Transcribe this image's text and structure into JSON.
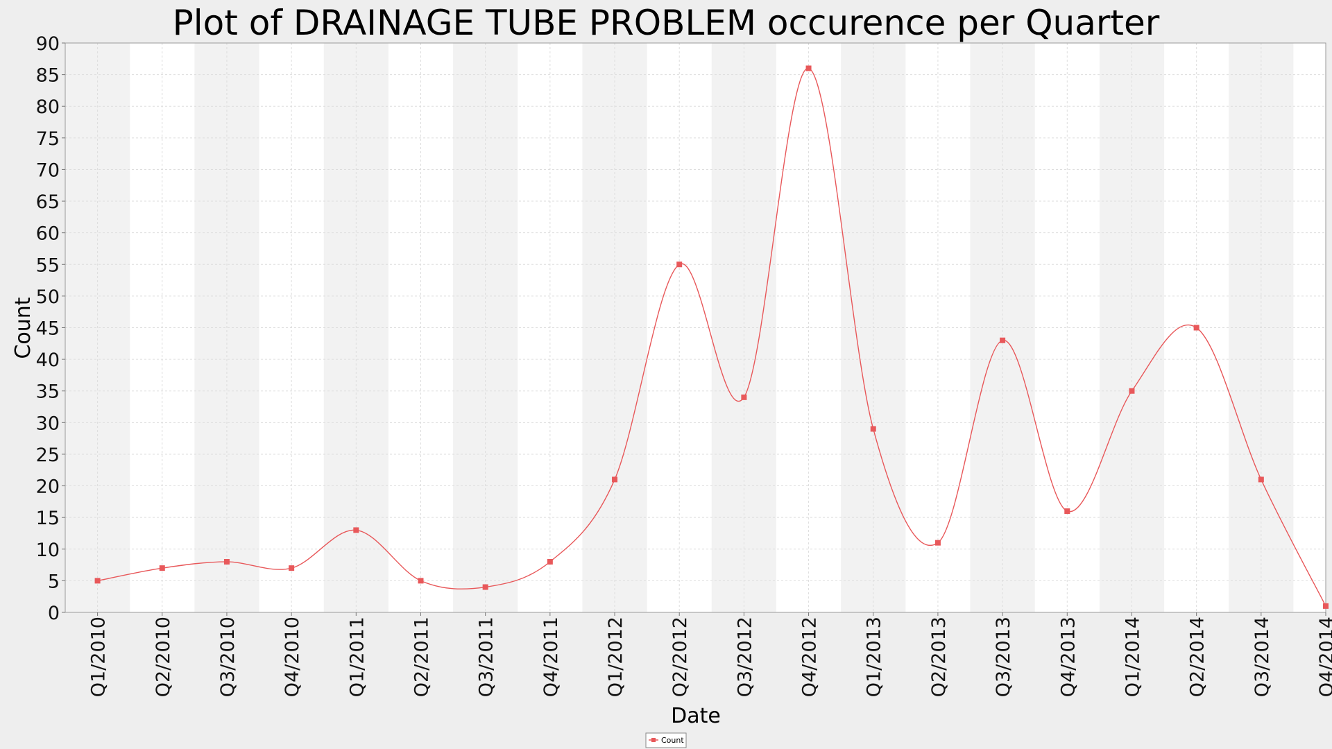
{
  "chart_data": {
    "type": "line",
    "title": "Plot of DRAINAGE TUBE PROBLEM occurence per Quarter",
    "xlabel": "Date",
    "ylabel": "Count",
    "ylim": [
      0,
      90
    ],
    "y_ticks": [
      0,
      5,
      10,
      15,
      20,
      25,
      30,
      35,
      40,
      45,
      50,
      55,
      60,
      65,
      70,
      75,
      80,
      85,
      90
    ],
    "categories": [
      "Q1/2010",
      "Q2/2010",
      "Q3/2010",
      "Q4/2010",
      "Q1/2011",
      "Q2/2011",
      "Q3/2011",
      "Q4/2011",
      "Q1/2012",
      "Q2/2012",
      "Q3/2012",
      "Q4/2012",
      "Q1/2013",
      "Q2/2013",
      "Q3/2013",
      "Q4/2013",
      "Q1/2014",
      "Q2/2014",
      "Q3/2014",
      "Q4/2014"
    ],
    "series": [
      {
        "name": "Count",
        "color": "#e8585a",
        "values": [
          5,
          7,
          8,
          7,
          13,
          5,
          4,
          8,
          21,
          55,
          34,
          86,
          29,
          11,
          43,
          16,
          35,
          45,
          21,
          1
        ]
      }
    ],
    "smooth": true,
    "grid": true,
    "alternating_bands": true,
    "legend": {
      "position": "bottom-center",
      "entries": [
        "Count"
      ]
    }
  }
}
